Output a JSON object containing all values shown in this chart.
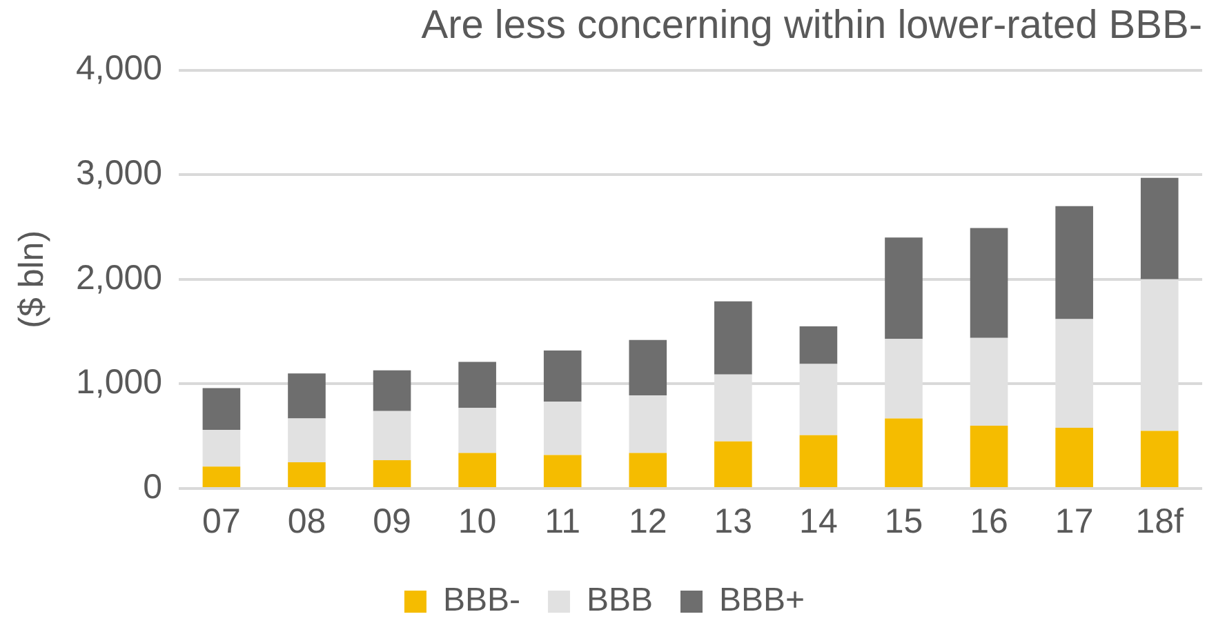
{
  "chart_data": {
    "type": "bar",
    "title": "Are less concerning within lower-rated BBB-",
    "ylabel": "($ bln)",
    "categories": [
      "07",
      "08",
      "09",
      "10",
      "11",
      "12",
      "13",
      "14",
      "15",
      "16",
      "17",
      "18f"
    ],
    "stacked": true,
    "series": [
      {
        "name": "BBB-",
        "color": "#f5bc00",
        "values": [
          210,
          250,
          270,
          340,
          320,
          340,
          450,
          510,
          670,
          600,
          580,
          550
        ]
      },
      {
        "name": "BBB",
        "color": "#e1e1e1",
        "values": [
          350,
          420,
          470,
          430,
          510,
          550,
          640,
          680,
          760,
          840,
          1040,
          1450
        ]
      },
      {
        "name": "BBB+",
        "color": "#6e6e6e",
        "values": [
          400,
          430,
          390,
          440,
          490,
          530,
          700,
          360,
          970,
          1050,
          1080,
          970
        ]
      }
    ],
    "ylim": [
      0,
      4000
    ],
    "yticks": [
      0,
      {
        "value": 1000,
        "label": "1,000"
      },
      {
        "value": 2000,
        "label": "2,000"
      },
      {
        "value": 3000,
        "label": "3,000"
      },
      {
        "value": 4000,
        "label": "4,000"
      }
    ],
    "grid": "y",
    "legend": "bottom"
  }
}
